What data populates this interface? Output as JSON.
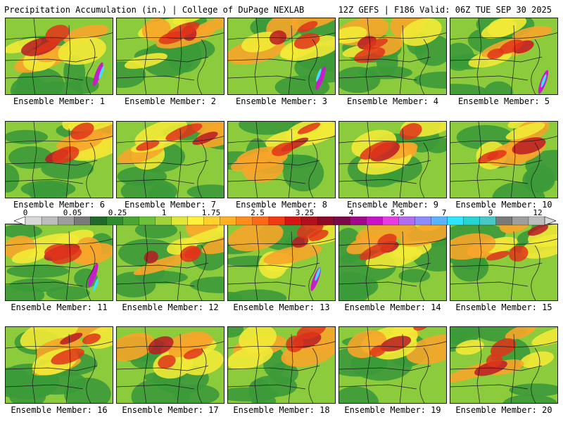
{
  "header": {
    "title": "Precipitation Accumulation (in.) | College of DuPage NEXLAB",
    "run_info": "12Z GEFS | F186 Valid: 06Z TUE SEP 30 2025"
  },
  "members": [
    {
      "label": "Ensemble Member: 1"
    },
    {
      "label": "Ensemble Member: 2"
    },
    {
      "label": "Ensemble Member: 3"
    },
    {
      "label": "Ensemble Member: 4"
    },
    {
      "label": "Ensemble Member: 5"
    },
    {
      "label": "Ensemble Member: 6"
    },
    {
      "label": "Ensemble Member: 7"
    },
    {
      "label": "Ensemble Member: 8"
    },
    {
      "label": "Ensemble Member: 9"
    },
    {
      "label": "Ensemble Member: 10"
    },
    {
      "label": "Ensemble Member: 11"
    },
    {
      "label": "Ensemble Member: 12"
    },
    {
      "label": "Ensemble Member: 13"
    },
    {
      "label": "Ensemble Member: 14"
    },
    {
      "label": "Ensemble Member: 15"
    },
    {
      "label": "Ensemble Member: 16"
    },
    {
      "label": "Ensemble Member: 17"
    },
    {
      "label": "Ensemble Member: 18"
    },
    {
      "label": "Ensemble Member: 19"
    },
    {
      "label": "Ensemble Member: 20"
    }
  ],
  "colorbar": {
    "tick_labels": [
      "0",
      "0.05",
      "0.25",
      "1",
      "1.75",
      "2.5",
      "3.25",
      "4",
      "5.5",
      "7",
      "9",
      "12"
    ],
    "colors": [
      "#ffffff",
      "#d9d9d9",
      "#bdbdbd",
      "#9e9e9e",
      "#7a7a7a",
      "#1f6b2a",
      "#2e8b2e",
      "#4aa632",
      "#6cc13a",
      "#a3d33b",
      "#e2e638",
      "#fff23a",
      "#ffd22e",
      "#ffb025",
      "#ff8c1e",
      "#ff6a18",
      "#f23a14",
      "#d61414",
      "#b00f1e",
      "#8c0a28",
      "#7a0a4a",
      "#a00a8a",
      "#c814c8",
      "#e63ce6",
      "#b26cf0",
      "#8c8cff",
      "#5ab4ff",
      "#2ee6ff",
      "#27d4d4",
      "#48c8c8",
      "#7a7a7a",
      "#9e9e9e",
      "#bdbdbd",
      "#d9d9d9"
    ]
  },
  "map_palette": {
    "low": "#3c9a3a",
    "light": "#8ccc3c",
    "yellow": "#f2ea36",
    "orange": "#f7a52a",
    "red": "#e0341a",
    "darkred": "#b81a24",
    "magenta": "#c81ec8",
    "cyan": "#3ee0ff",
    "border": "#1a1a1a"
  }
}
